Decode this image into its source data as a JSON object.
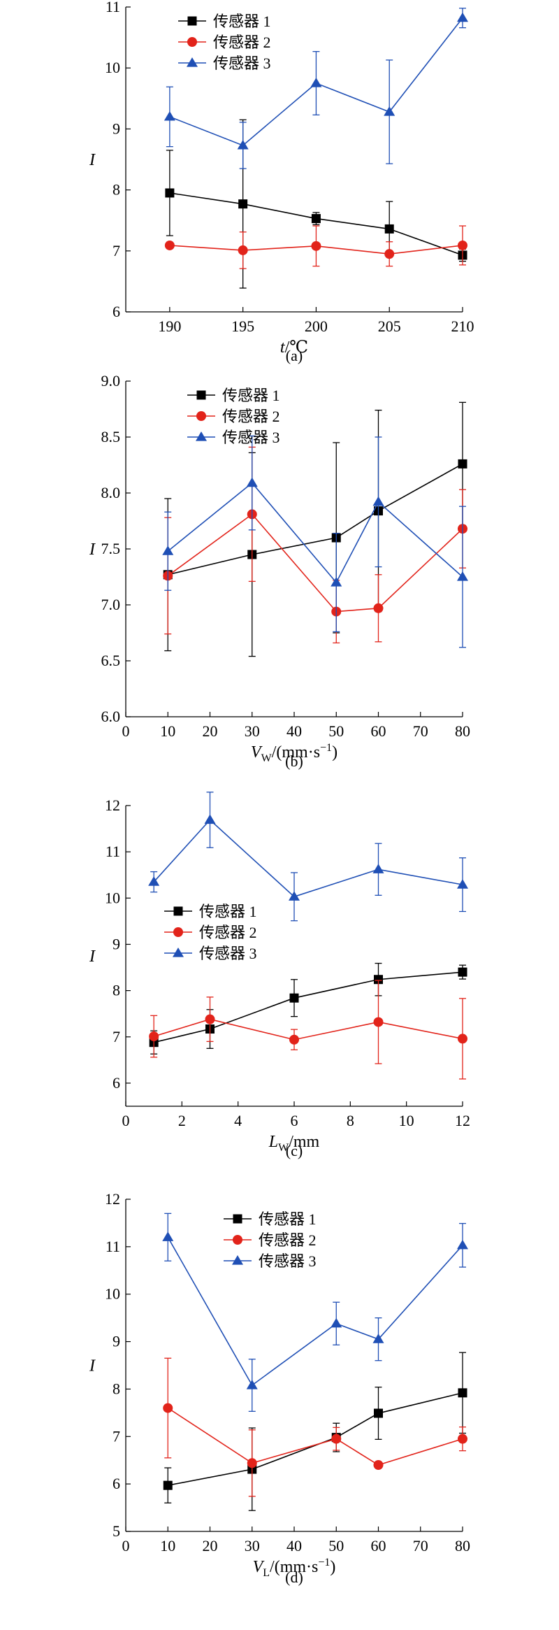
{
  "chart_data": [
    {
      "id": "a",
      "type": "line",
      "caption": "(a)",
      "xlabel": "t/℃",
      "ylabel": "I",
      "xlim": [
        187,
        210
      ],
      "ylim": [
        6,
        11
      ],
      "xticks": [
        190,
        195,
        200,
        205,
        210
      ],
      "xtick_labels": [
        "190",
        "195",
        "200",
        "205",
        "210"
      ],
      "yticks": [
        6,
        7,
        8,
        9,
        10,
        11
      ],
      "ytick_labels": [
        "6",
        "7",
        "8",
        "9",
        "10",
        "11"
      ],
      "legend": "top-left",
      "grid": false,
      "x": [
        190,
        195,
        200,
        205,
        210
      ],
      "series": [
        {
          "name": "传感器 1",
          "color": "#000000",
          "marker": "square",
          "values": [
            7.95,
            7.77,
            7.53,
            7.36,
            6.93
          ],
          "errors": [
            0.7,
            1.38,
            0.1,
            0.45,
            0.1
          ]
        },
        {
          "name": "传感器 2",
          "color": "#e2231a",
          "marker": "circle",
          "values": [
            7.09,
            7.01,
            7.08,
            6.95,
            7.09
          ],
          "errors": [
            0.04,
            0.3,
            0.33,
            0.2,
            0.32
          ]
        },
        {
          "name": "传感器 3",
          "color": "#1f4fb5",
          "marker": "triangle",
          "values": [
            9.2,
            8.73,
            9.75,
            9.28,
            10.82
          ],
          "errors": [
            0.49,
            0.38,
            0.52,
            0.85,
            0.16
          ]
        }
      ]
    },
    {
      "id": "b",
      "type": "line",
      "caption": "(b)",
      "xlabel": "V",
      "xlabel_sub": "W",
      "xlabel_rest": "/(mm·s",
      "xlabel_sup": "−1",
      "xlabel_end": ")",
      "ylabel": "I",
      "xlim": [
        0,
        80
      ],
      "ylim": [
        6.0,
        9.0
      ],
      "xticks": [
        0,
        10,
        20,
        30,
        40,
        50,
        60,
        70,
        80
      ],
      "xtick_labels": [
        "0",
        "10",
        "20",
        "30",
        "40",
        "50",
        "60",
        "70",
        "80"
      ],
      "yticks": [
        6.0,
        6.5,
        7.0,
        7.5,
        8.0,
        8.5,
        9.0
      ],
      "ytick_labels": [
        "6.0",
        "6.5",
        "7.0",
        "7.5",
        "8.0",
        "8.5",
        "9.0"
      ],
      "legend": "top-left",
      "grid": false,
      "x": [
        10,
        30,
        50,
        60,
        80
      ],
      "series": [
        {
          "name": "传感器 1",
          "color": "#000000",
          "marker": "square",
          "values": [
            7.27,
            7.45,
            7.6,
            7.84,
            8.26
          ],
          "errors": [
            0.68,
            0.91,
            0.85,
            0.9,
            0.55
          ]
        },
        {
          "name": "传感器 2",
          "color": "#e2231a",
          "marker": "circle",
          "values": [
            7.26,
            7.81,
            6.94,
            6.97,
            7.68
          ],
          "errors": [
            0.52,
            0.6,
            0.28,
            0.3,
            0.35
          ]
        },
        {
          "name": "传感器 3",
          "color": "#1f4fb5",
          "marker": "triangle",
          "values": [
            7.48,
            8.09,
            7.2,
            7.92,
            7.25
          ],
          "errors": [
            0.35,
            0.42,
            0.44,
            0.58,
            0.63
          ]
        }
      ]
    },
    {
      "id": "c",
      "type": "line",
      "caption": "(c)",
      "xlabel": "L",
      "xlabel_sub": "W",
      "xlabel_rest": "/mm",
      "xlabel_sup": "",
      "xlabel_end": "",
      "ylabel": "I",
      "xlim": [
        0,
        12
      ],
      "ylim": [
        5.5,
        12
      ],
      "xticks": [
        0,
        2,
        4,
        6,
        8,
        10,
        12
      ],
      "xtick_labels": [
        "0",
        "2",
        "4",
        "6",
        "8",
        "10",
        "12"
      ],
      "yticks": [
        6,
        7,
        8,
        9,
        10,
        11,
        12
      ],
      "ytick_labels": [
        "6",
        "7",
        "8",
        "9",
        "10",
        "11",
        "12"
      ],
      "legend": "center-left",
      "grid": false,
      "x": [
        1,
        3,
        6,
        9,
        12
      ],
      "series": [
        {
          "name": "传感器 1",
          "color": "#000000",
          "marker": "square",
          "values": [
            6.88,
            7.17,
            7.84,
            8.24,
            8.4
          ],
          "errors": [
            0.25,
            0.42,
            0.4,
            0.35,
            0.15
          ]
        },
        {
          "name": "传感器 2",
          "color": "#e2231a",
          "marker": "circle",
          "values": [
            7.01,
            7.38,
            6.94,
            7.32,
            6.96
          ],
          "errors": [
            0.45,
            0.48,
            0.22,
            0.9,
            0.87
          ]
        },
        {
          "name": "传感器 3",
          "color": "#1f4fb5",
          "marker": "triangle",
          "values": [
            10.35,
            11.69,
            10.03,
            10.62,
            10.29
          ],
          "errors": [
            0.22,
            0.6,
            0.52,
            0.56,
            0.58
          ]
        }
      ]
    },
    {
      "id": "d",
      "type": "line",
      "caption": "(d)",
      "xlabel": "V",
      "xlabel_sub": "L",
      "xlabel_rest": "/(mm·s",
      "xlabel_sup": "−1",
      "xlabel_end": ")",
      "ylabel": "I",
      "xlim": [
        0,
        80
      ],
      "ylim": [
        5,
        12
      ],
      "xticks": [
        0,
        10,
        20,
        30,
        40,
        50,
        60,
        70,
        80
      ],
      "xtick_labels": [
        "0",
        "10",
        "20",
        "30",
        "40",
        "50",
        "60",
        "70",
        "80"
      ],
      "yticks": [
        5,
        6,
        7,
        8,
        9,
        10,
        11,
        12
      ],
      "ytick_labels": [
        "5",
        "6",
        "7",
        "8",
        "9",
        "10",
        "11",
        "12"
      ],
      "legend": "top-left",
      "grid": false,
      "x": [
        10,
        30,
        50,
        60,
        80
      ],
      "series": [
        {
          "name": "传感器 1",
          "color": "#000000",
          "marker": "square",
          "values": [
            5.97,
            6.31,
            6.98,
            7.49,
            7.92
          ],
          "errors": [
            0.37,
            0.87,
            0.3,
            0.55,
            0.85
          ]
        },
        {
          "name": "传感器 2",
          "color": "#e2231a",
          "marker": "circle",
          "values": [
            7.6,
            6.44,
            6.95,
            6.4,
            6.95
          ],
          "errors": [
            1.05,
            0.7,
            0.24,
            0.05,
            0.25
          ]
        },
        {
          "name": "传感器 3",
          "color": "#1f4fb5",
          "marker": "triangle",
          "values": [
            11.2,
            8.08,
            9.38,
            9.05,
            11.03
          ],
          "errors": [
            0.5,
            0.55,
            0.45,
            0.45,
            0.46
          ]
        }
      ]
    }
  ]
}
